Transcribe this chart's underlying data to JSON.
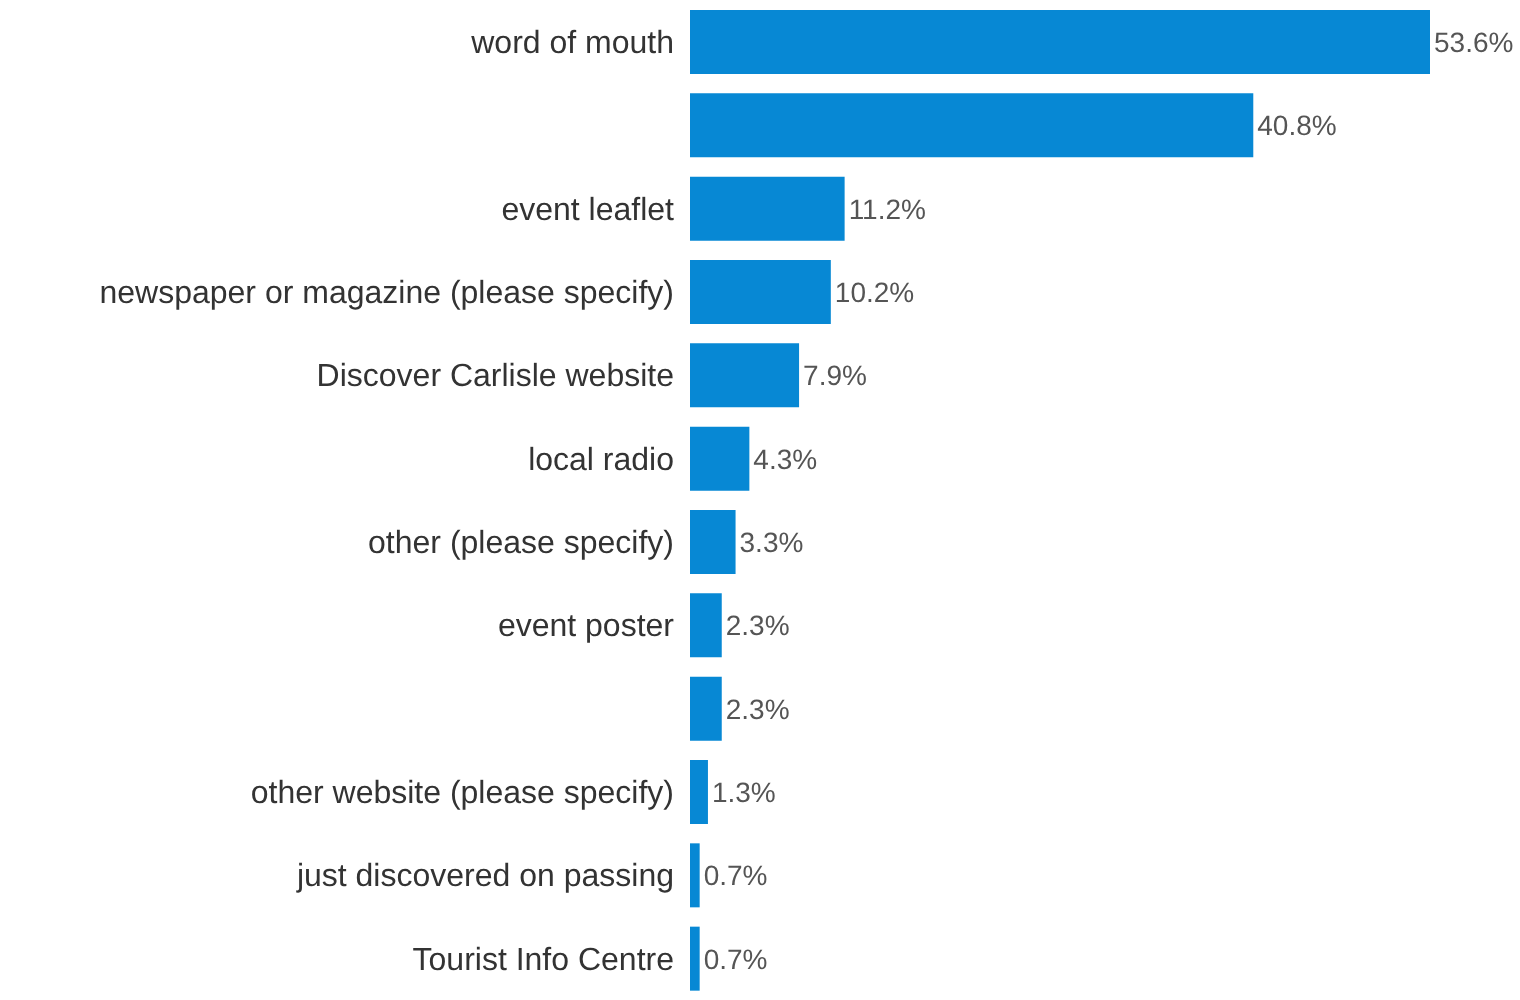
{
  "chart_data": {
    "type": "bar",
    "orientation": "horizontal",
    "categories": [
      "word of mouth",
      null,
      "event leaflet",
      "newspaper or magazine (please specify)",
      "Discover Carlisle website",
      "local radio",
      "other (please specify)",
      "event poster",
      null,
      "other website (please specify)",
      "just discovered on passing",
      "Tourist Info Centre"
    ],
    "values": [
      53.6,
      40.8,
      11.2,
      10.2,
      7.9,
      4.3,
      3.3,
      2.3,
      2.3,
      1.3,
      0.7,
      0.7
    ],
    "value_labels": [
      "53.6%",
      "40.8%",
      "11.2%",
      "10.2%",
      "7.9%",
      "4.3%",
      "3.3%",
      "2.3%",
      "2.3%",
      "1.3%",
      "0.7%",
      "0.7%"
    ],
    "color": "#0788d4",
    "grid": false,
    "legend": false
  }
}
